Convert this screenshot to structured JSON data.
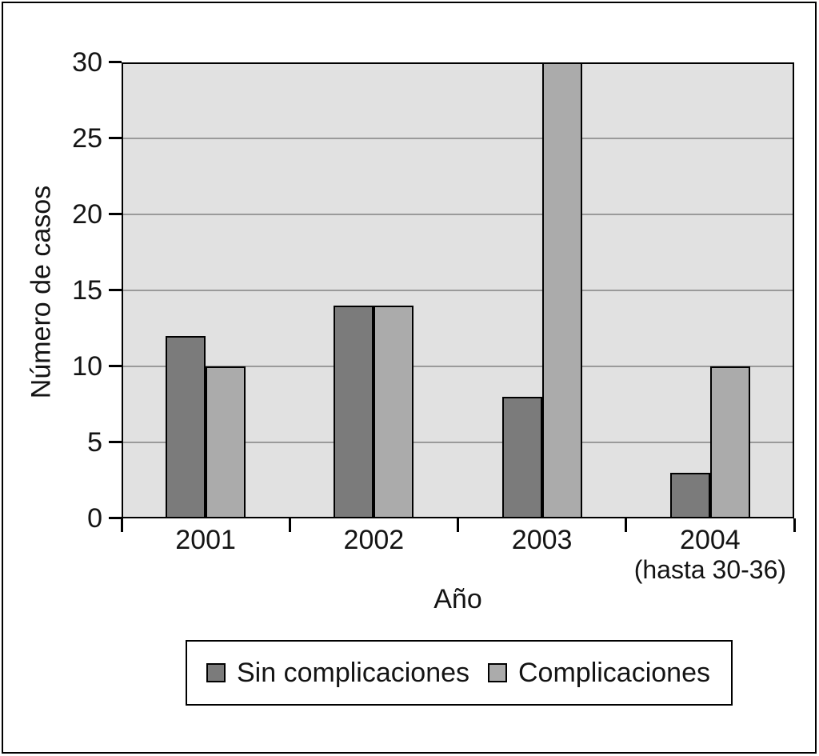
{
  "figure": {
    "background": "#ffffff",
    "frame_color": "#000000"
  },
  "chart_data": {
    "type": "bar",
    "title": "",
    "xlabel": "Año",
    "ylabel": "Número de casos",
    "ylim": [
      0,
      30
    ],
    "yticks": [
      0,
      5,
      10,
      15,
      20,
      25,
      30
    ],
    "grid": true,
    "gridline_color": "#9a9a9a",
    "plot_background": "#e1e1e1",
    "axis_color": "#000000",
    "categories": [
      "2001",
      "2002",
      "2003",
      "2004"
    ],
    "category_sublabels": [
      "",
      "",
      "",
      "(hasta 30-36)"
    ],
    "series": [
      {
        "name": "Sin complicaciones",
        "color": "#7b7b7b",
        "values": [
          12,
          14,
          8,
          3
        ]
      },
      {
        "name": "Complicaciones",
        "color": "#ababab",
        "values": [
          10,
          14,
          30,
          10
        ]
      }
    ],
    "legend": {
      "position": "bottom",
      "entries": [
        "Sin complicaciones",
        "Complicaciones"
      ]
    }
  }
}
